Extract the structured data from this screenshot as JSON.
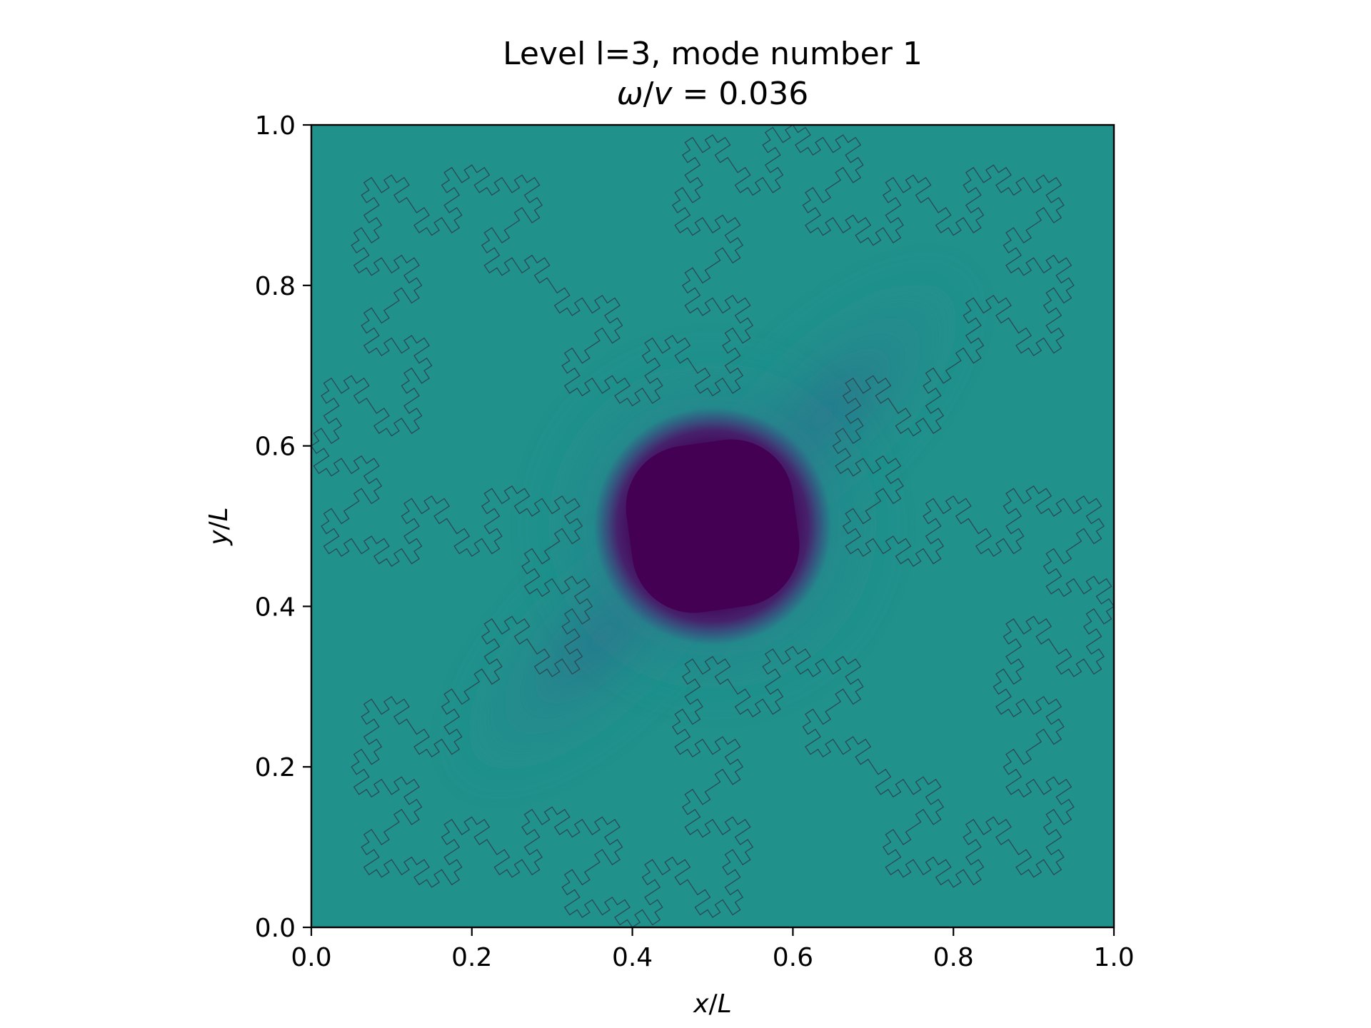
{
  "chart_data": {
    "type": "heatmap",
    "title": "Level l=3, mode number 1",
    "subtitle_parts": {
      "omega": "ω",
      "slash": "/",
      "v": "v",
      "rest": " = 0.036"
    },
    "xlabel_parts": {
      "var": "x",
      "slash": "/",
      "L": "L"
    },
    "ylabel_parts": {
      "var": "y",
      "slash": "/",
      "L": "L"
    },
    "xlim": [
      0.0,
      1.0
    ],
    "ylim": [
      0.0,
      1.0
    ],
    "x_ticks": [
      0.0,
      0.2,
      0.4,
      0.6,
      0.8,
      1.0
    ],
    "y_ticks": [
      0.0,
      0.2,
      0.4,
      0.6,
      0.8,
      1.0
    ],
    "x_tick_labels": [
      "0.0",
      "0.2",
      "0.4",
      "0.6",
      "0.8",
      "1.0"
    ],
    "y_tick_labels": [
      "0.0",
      "0.2",
      "0.4",
      "0.6",
      "0.8",
      "1.0"
    ],
    "grid": false,
    "colormap": "viridis",
    "colors": {
      "background_field": "#21918c",
      "mode_peak": "#440154",
      "mode_mid": "#3b528b",
      "boundary_outline": "#2b4a55"
    },
    "mode": {
      "center": [
        0.5,
        0.5
      ],
      "core_half_width": 0.11,
      "diagonal_lobe_direction": "bottom-left to top-right"
    },
    "boundary": {
      "shape": "quadratic Koch (Minkowski) fractal",
      "level": 3,
      "vertices": [
        [
          0.0,
          0.6
        ],
        [
          0.4,
          0.0
        ],
        [
          1.0,
          0.4
        ],
        [
          0.6,
          1.0
        ]
      ]
    }
  }
}
